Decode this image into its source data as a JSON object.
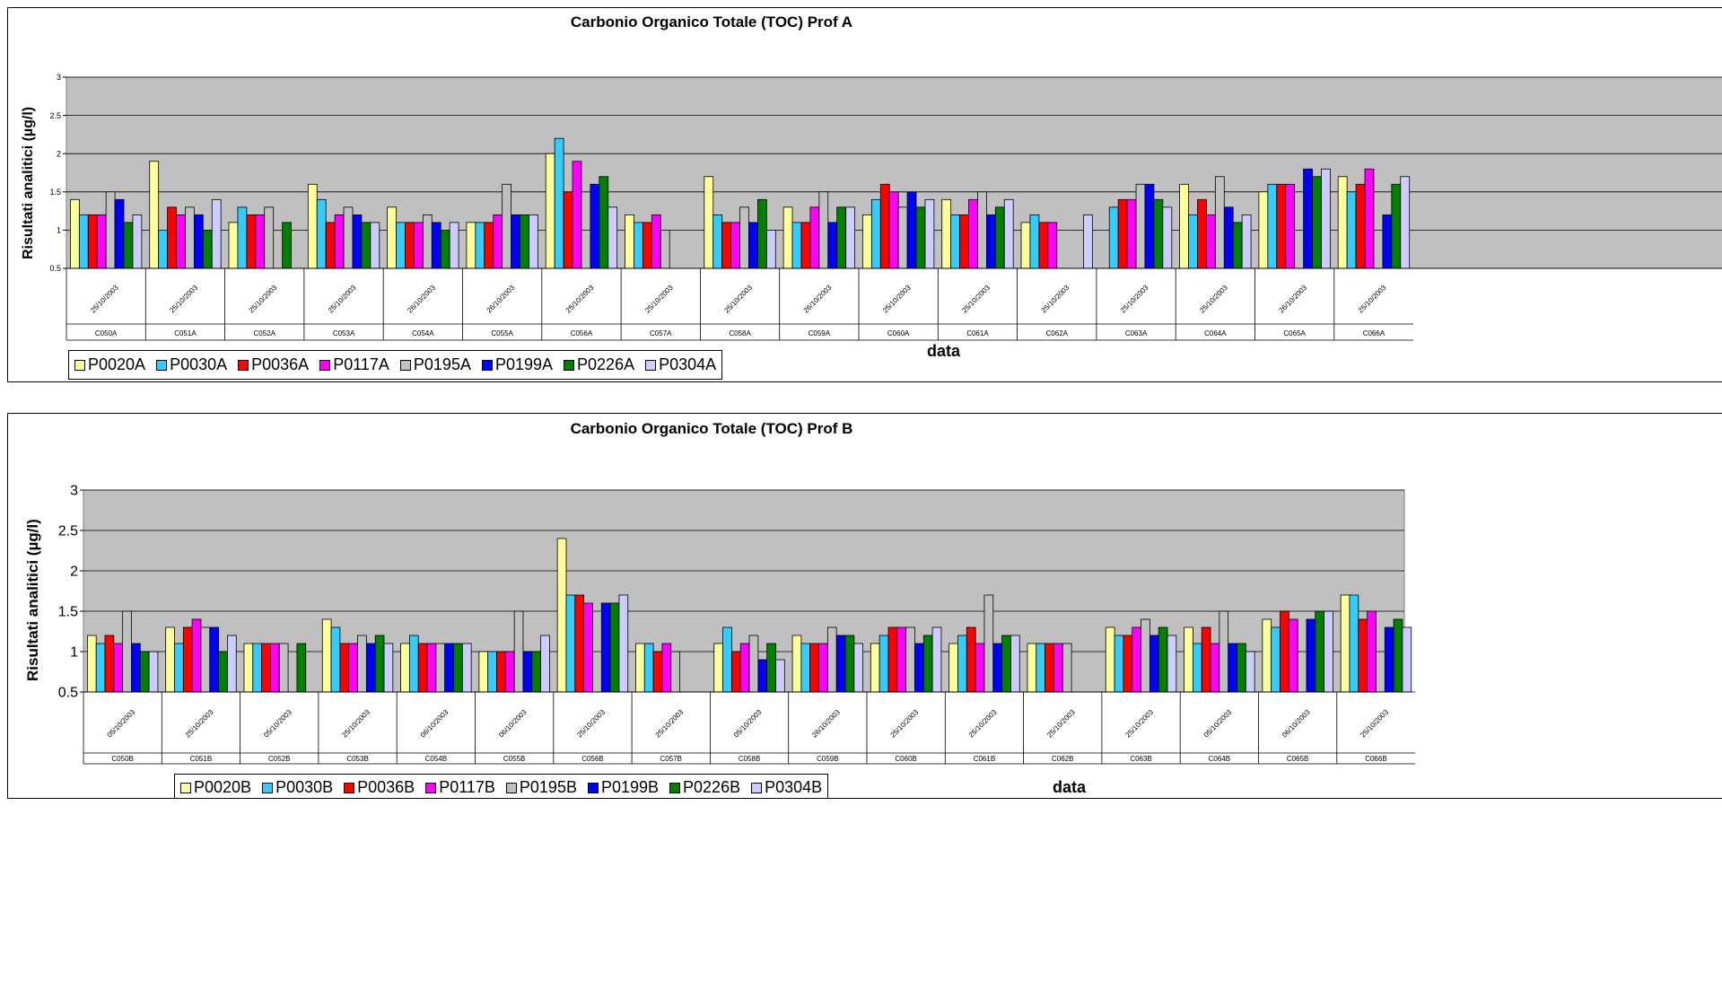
{
  "colors": {
    "plot_background": "#c0c0c0",
    "series": [
      "#ffff99",
      "#33ccff",
      "#ff0000",
      "#ff00ff",
      "#c0c0c0",
      "#0000ff",
      "#008000",
      "#ccccff"
    ]
  },
  "charts": [
    {
      "id": "A",
      "title": "Carbonio Organico Totale (TOC) Prof A",
      "ylabel": "Risultati analitici (µg/l)",
      "xlabel": "data",
      "legend_labels": [
        "P0020A",
        "P0030A",
        "P0036A",
        "P0117A",
        "P0195A",
        "P0199A",
        "P0226A",
        "P0304A"
      ]
    },
    {
      "id": "B",
      "title": "Carbonio Organico Totale (TOC) Prof B",
      "ylabel": "Risultati analitici (µg/l)",
      "xlabel": "data",
      "legend_labels": [
        "P0020B",
        "P0030B",
        "P0036B",
        "P0117B",
        "P0195B",
        "P0199B",
        "P0226B",
        "P0304B"
      ]
    }
  ],
  "chart_data": [
    {
      "type": "bar",
      "title": "Carbonio Organico Totale (TOC) Prof A",
      "xlabel": "data",
      "ylabel": "Risultati analitici (µg/l)",
      "ylim": [
        0.5,
        3
      ],
      "yticks": [
        0.5,
        1,
        1.5,
        2,
        2.5,
        3
      ],
      "grid": true,
      "legend_position": "bottom",
      "categories": [
        "C050A",
        "C051A",
        "C052A",
        "C053A",
        "C054A",
        "C055A",
        "C056A",
        "C057A",
        "C058A",
        "C059A",
        "C060A",
        "C061A",
        "C062A",
        "C063A",
        "C064A",
        "C065A",
        "C066A"
      ],
      "series": [
        {
          "name": "P0020A",
          "values": [
            1.4,
            1.9,
            1.1,
            1.6,
            1.3,
            1.1,
            2.0,
            1.2,
            1.7,
            1.3,
            1.2,
            1.4,
            1.1,
            null,
            1.6,
            1.5,
            1.7
          ]
        },
        {
          "name": "P0030A",
          "values": [
            1.2,
            1.0,
            1.3,
            1.4,
            1.1,
            1.1,
            2.2,
            1.1,
            1.2,
            1.1,
            1.4,
            1.2,
            1.2,
            1.3,
            1.2,
            1.6,
            1.5
          ]
        },
        {
          "name": "P0036A",
          "values": [
            1.2,
            1.3,
            1.2,
            1.1,
            1.1,
            1.1,
            1.5,
            1.1,
            1.1,
            1.1,
            1.6,
            1.2,
            1.1,
            1.4,
            1.4,
            1.6,
            1.6
          ]
        },
        {
          "name": "P0117A",
          "values": [
            1.2,
            1.2,
            1.2,
            1.2,
            1.1,
            1.2,
            1.9,
            1.2,
            1.1,
            1.3,
            1.5,
            1.4,
            1.1,
            1.4,
            1.2,
            1.6,
            1.8
          ]
        },
        {
          "name": "P0195A",
          "values": [
            1.5,
            1.3,
            1.3,
            1.3,
            1.2,
            1.6,
            null,
            1.0,
            1.3,
            1.5,
            1.3,
            1.5,
            null,
            1.6,
            1.7,
            null,
            null
          ]
        },
        {
          "name": "P0199A",
          "values": [
            1.4,
            1.2,
            null,
            1.2,
            1.1,
            1.2,
            1.6,
            null,
            1.1,
            1.1,
            1.5,
            1.2,
            null,
            1.6,
            1.3,
            1.8,
            1.2
          ]
        },
        {
          "name": "P0226A",
          "values": [
            1.1,
            1.0,
            1.1,
            1.1,
            1.0,
            1.2,
            1.7,
            null,
            1.4,
            1.3,
            1.3,
            1.3,
            null,
            1.4,
            1.1,
            1.7,
            1.6
          ]
        },
        {
          "name": "P0304A",
          "values": [
            1.2,
            1.4,
            null,
            1.1,
            1.1,
            1.2,
            1.3,
            null,
            1.0,
            1.3,
            1.4,
            1.4,
            1.2,
            1.3,
            1.2,
            1.8,
            1.7
          ]
        }
      ],
      "date_tick_labels": [
        "25/10/2003",
        "25/10/2003",
        "25/10/2003",
        "25/10/2003",
        "26/10/2003",
        "26/10/2003",
        "25/10/2003",
        "25/10/2003",
        "25/10/2003",
        "26/10/2003",
        "25/10/2003",
        "25/10/2003",
        "25/10/2003",
        "25/10/2003",
        "25/10/2003",
        "26/10/2003",
        "25/10/2003"
      ]
    },
    {
      "type": "bar",
      "title": "Carbonio Organico Totale (TOC) Prof B",
      "xlabel": "data",
      "ylabel": "Risultati analitici (µg/l)",
      "ylim": [
        0.5,
        3
      ],
      "yticks": [
        0.5,
        1,
        1.5,
        2,
        2.5,
        3
      ],
      "grid": true,
      "legend_position": "bottom",
      "categories": [
        "C050B",
        "C051B",
        "C052B",
        "C053B",
        "C054B",
        "C055B",
        "C056B",
        "C057B",
        "C058B",
        "C059B",
        "C060B",
        "C061B",
        "C062B",
        "C063B",
        "C064B",
        "C065B",
        "C066B"
      ],
      "series": [
        {
          "name": "P0020B",
          "values": [
            1.2,
            1.3,
            1.1,
            1.4,
            1.1,
            1.0,
            2.4,
            1.1,
            1.1,
            1.2,
            1.1,
            1.1,
            1.1,
            1.3,
            1.3,
            1.4,
            1.7
          ]
        },
        {
          "name": "P0030B",
          "values": [
            1.1,
            1.1,
            1.1,
            1.3,
            1.2,
            1.0,
            1.7,
            1.1,
            1.3,
            1.1,
            1.2,
            1.2,
            1.1,
            1.2,
            1.1,
            1.3,
            1.7
          ]
        },
        {
          "name": "P0036B",
          "values": [
            1.2,
            1.3,
            1.1,
            1.1,
            1.1,
            1.0,
            1.7,
            1.0,
            1.0,
            1.1,
            1.3,
            1.3,
            1.1,
            1.2,
            1.3,
            1.5,
            1.4
          ]
        },
        {
          "name": "P0117B",
          "values": [
            1.1,
            1.4,
            1.1,
            1.1,
            1.1,
            1.0,
            1.6,
            1.1,
            1.1,
            1.1,
            1.3,
            1.1,
            1.1,
            1.3,
            1.1,
            1.4,
            1.5
          ]
        },
        {
          "name": "P0195B",
          "values": [
            1.5,
            1.3,
            1.1,
            1.2,
            1.1,
            1.5,
            null,
            1.0,
            1.2,
            1.3,
            1.3,
            1.7,
            1.1,
            1.4,
            1.5,
            null,
            null
          ]
        },
        {
          "name": "P0199B",
          "values": [
            1.1,
            1.3,
            null,
            1.1,
            1.1,
            1.0,
            1.6,
            null,
            0.9,
            1.2,
            1.1,
            1.1,
            null,
            1.2,
            1.1,
            1.4,
            1.3
          ]
        },
        {
          "name": "P0226B",
          "values": [
            1.0,
            1.0,
            1.1,
            1.2,
            1.1,
            1.0,
            1.6,
            null,
            1.1,
            1.2,
            1.2,
            1.2,
            null,
            1.3,
            1.1,
            1.5,
            1.4
          ]
        },
        {
          "name": "P0304B",
          "values": [
            1.0,
            1.2,
            null,
            1.1,
            1.1,
            1.2,
            1.7,
            null,
            0.9,
            1.1,
            1.3,
            1.2,
            null,
            1.2,
            1.0,
            1.5,
            1.3
          ]
        }
      ],
      "date_tick_labels": [
        "05/10/2003",
        "25/10/2003",
        "05/10/2003",
        "25/10/2003",
        "06/10/2003",
        "06/10/2003",
        "25/10/2003",
        "25/10/2003",
        "05/10/2003",
        "26/10/2003",
        "25/10/2003",
        "25/10/2003",
        "25/10/2003",
        "25/10/2003",
        "05/10/2003",
        "06/10/2003",
        "25/10/2003"
      ]
    }
  ]
}
